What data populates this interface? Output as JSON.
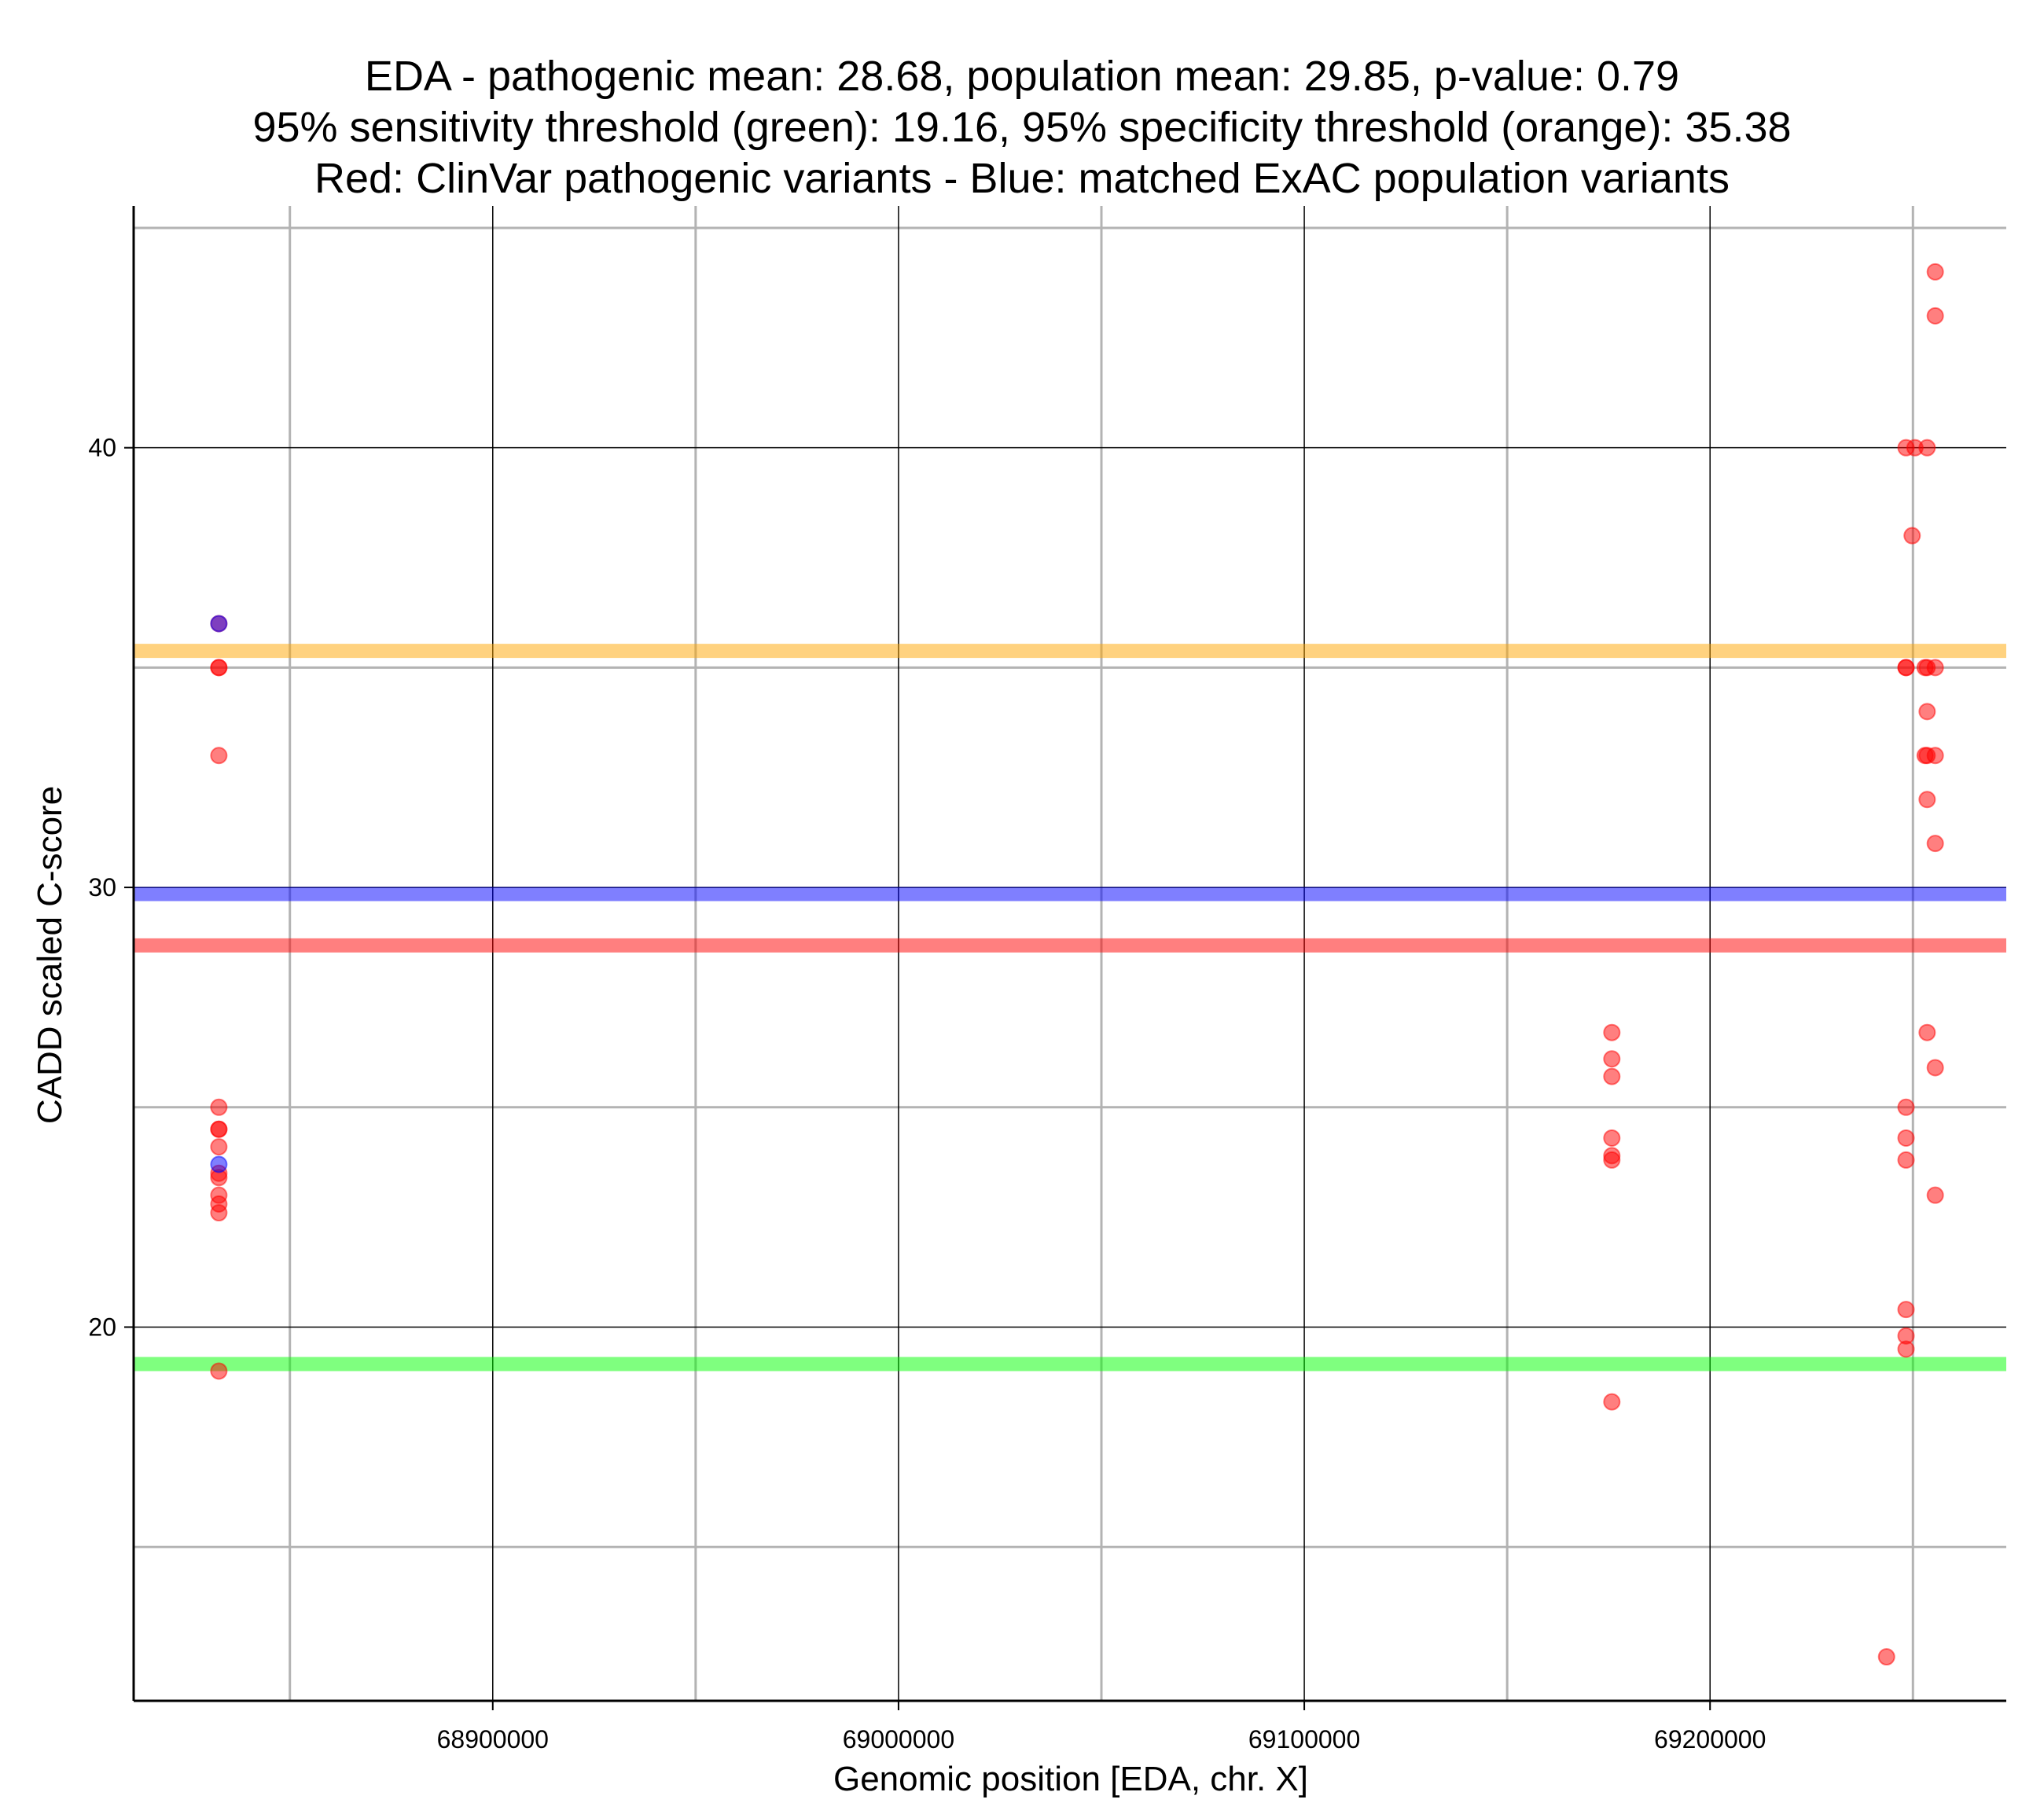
{
  "chart_data": {
    "type": "scatter",
    "title_lines": [
      "EDA - pathogenic mean: 28.68, population mean: 29.85, p-value: 0.79",
      "95% sensitivity threshold (green): 19.16, 95% specificity threshold (orange): 35.38",
      "Red: ClinVar pathogenic variants - Blue: matched ExAC population variants"
    ],
    "xlabel": "Genomic position [EDA, chr. X]",
    "ylabel": "CADD scaled C-score",
    "xlim": [
      68811500,
      69273000
    ],
    "ylim": [
      11.5,
      45.5
    ],
    "x_major_ticks": [
      68900000,
      69000000,
      69100000,
      69200000
    ],
    "x_tick_labels": [
      "68900000",
      "69000000",
      "69100000",
      "69200000"
    ],
    "x_minor_gridlines": [
      68850000,
      68950000,
      69050000,
      69150000,
      69250000
    ],
    "y_major_ticks": [
      20,
      30,
      40
    ],
    "y_tick_labels": [
      "20",
      "30",
      "40"
    ],
    "y_minor_gridlines": [
      15,
      25,
      35,
      45
    ],
    "grid": true,
    "reference_lines": [
      {
        "value": 35.38,
        "color": "#ffa500",
        "meaning": "95% specificity threshold"
      },
      {
        "value": 29.85,
        "color": "#0000ff",
        "meaning": "population mean"
      },
      {
        "value": 28.68,
        "color": "#ff0000",
        "meaning": "pathogenic mean"
      },
      {
        "value": 19.16,
        "color": "#00ff00",
        "meaning": "95% sensitivity threshold"
      }
    ],
    "series": [
      {
        "color": "#ff0000",
        "points": [
          [
            68832500,
            36.0
          ],
          [
            68832500,
            35.0
          ],
          [
            68832500,
            35.0
          ],
          [
            68832500,
            33.0
          ],
          [
            68832500,
            25.0
          ],
          [
            68832500,
            24.5
          ],
          [
            68832500,
            24.5
          ],
          [
            68832500,
            24.1
          ],
          [
            68832500,
            23.5
          ],
          [
            68832500,
            23.4
          ],
          [
            68832500,
            23.0
          ],
          [
            68832500,
            22.8
          ],
          [
            68832500,
            22.6
          ],
          [
            68832500,
            19.0
          ],
          [
            69175800,
            26.7
          ],
          [
            69175800,
            26.1
          ],
          [
            69175800,
            25.7
          ],
          [
            69175800,
            24.3
          ],
          [
            69175800,
            23.9
          ],
          [
            69175800,
            23.8
          ],
          [
            69175800,
            18.3
          ],
          [
            69243500,
            12.5
          ],
          [
            69248300,
            40.0
          ],
          [
            69248300,
            35.0
          ],
          [
            69248300,
            35.0
          ],
          [
            69248300,
            25.0
          ],
          [
            69248300,
            24.3
          ],
          [
            69248300,
            23.8
          ],
          [
            69248300,
            20.4
          ],
          [
            69248300,
            19.8
          ],
          [
            69248300,
            19.5
          ],
          [
            69250500,
            40.0
          ],
          [
            69249800,
            38.0
          ],
          [
            69253500,
            40.0
          ],
          [
            69253500,
            35.0
          ],
          [
            69253000,
            35.0
          ],
          [
            69253500,
            34.0
          ],
          [
            69253500,
            33.0
          ],
          [
            69253000,
            33.0
          ],
          [
            69253500,
            32.0
          ],
          [
            69253500,
            26.7
          ],
          [
            69255500,
            44.0
          ],
          [
            69255500,
            43.0
          ],
          [
            69255500,
            35.0
          ],
          [
            69255500,
            33.0
          ],
          [
            69255500,
            31.0
          ],
          [
            69255500,
            25.9
          ],
          [
            69255500,
            23.0
          ]
        ]
      },
      {
        "color": "#0000ff",
        "points": [
          [
            68832500,
            36.0
          ],
          [
            68832500,
            23.7
          ]
        ]
      }
    ]
  }
}
